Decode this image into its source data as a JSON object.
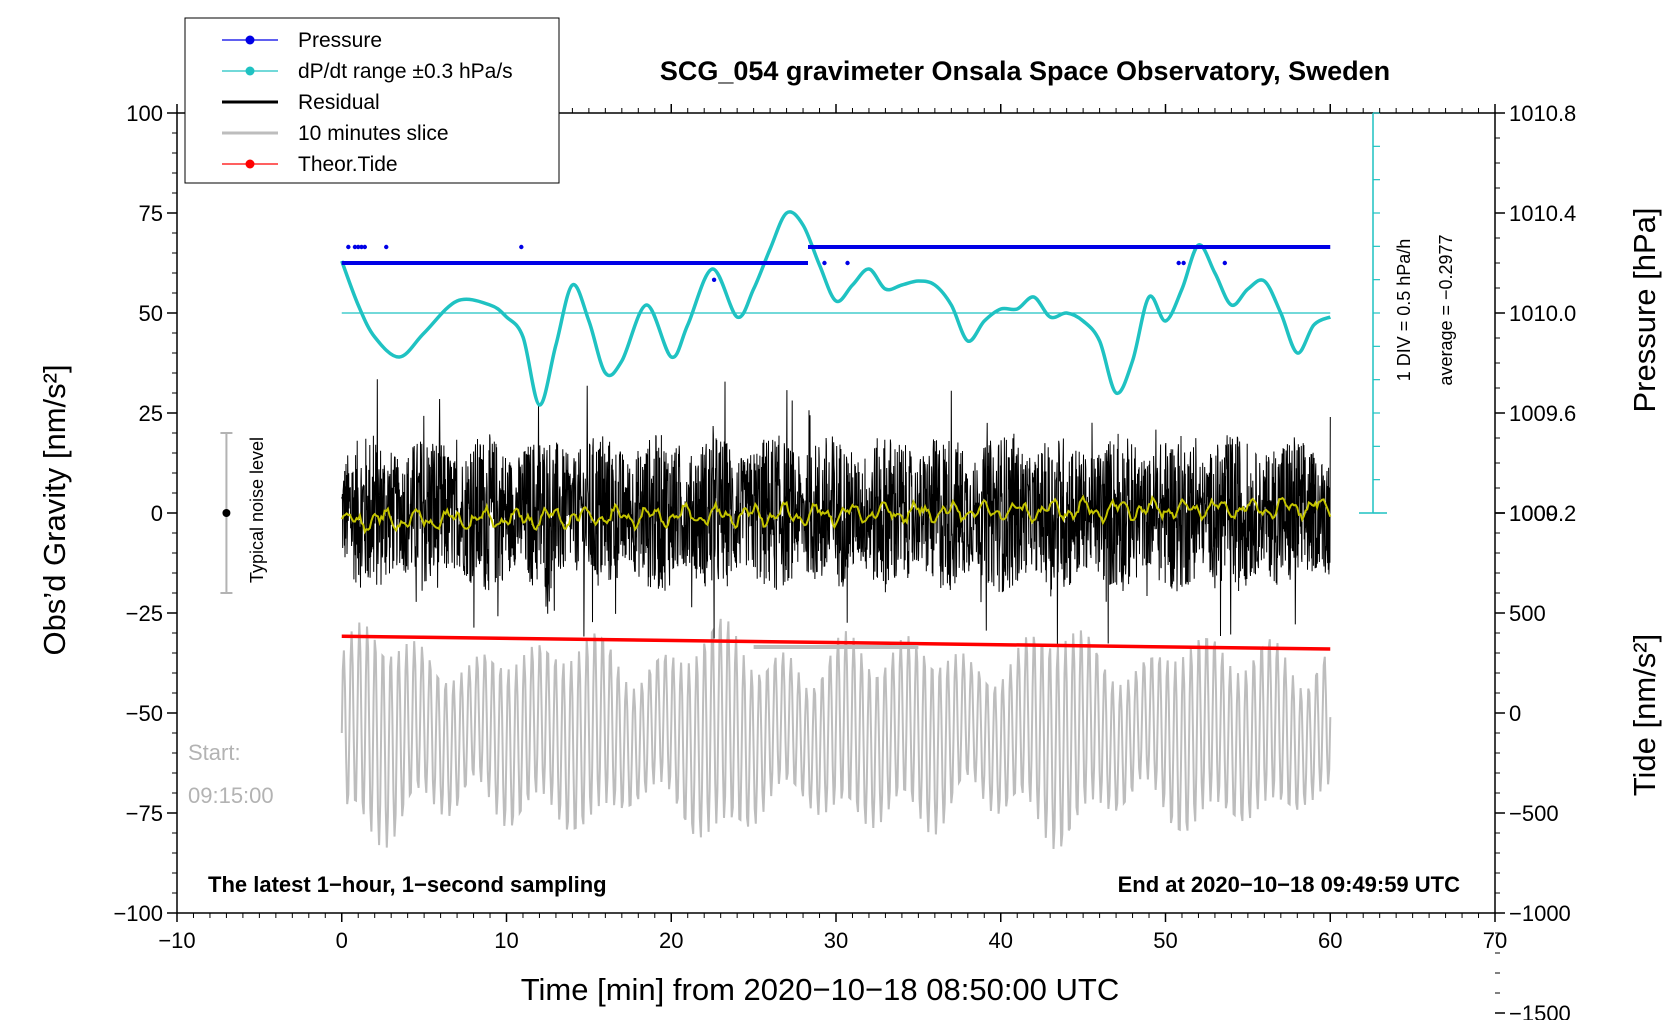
{
  "chart_data": {
    "type": "line",
    "title": "SCG_054 gravimeter Onsala Space Observatory, Sweden",
    "xlabel": "Time [min] from 2020−10−18 08:50:00 UTC",
    "ylabel_left": "Obs’d Gravity [nm/s²]",
    "ylabel_right_pressure": "Pressure [hPa]",
    "ylabel_right_tide": "Tide [nm/s²]",
    "xlim": [
      -10,
      70
    ],
    "ylim": [
      -100,
      100
    ],
    "x_ticks": [
      -10,
      0,
      10,
      20,
      30,
      40,
      50,
      60,
      70
    ],
    "x_tick_labels": [
      "−10",
      "0",
      "10",
      "20",
      "30",
      "40",
      "50",
      "60",
      "70"
    ],
    "y_ticks": [
      100,
      75,
      50,
      25,
      0,
      -25,
      -50,
      -75,
      -100
    ],
    "y_tick_labels": [
      "100",
      "75",
      "50",
      "25",
      "0",
      "−25",
      "−50",
      "−75",
      "−100"
    ],
    "pressure_ticks": [
      1010.8,
      1010.4,
      1010.0,
      1009.6,
      1009.2
    ],
    "pressure_tick_labels": [
      "1010.8",
      "1010.4",
      "1010.0",
      "1009.6",
      "1009.2"
    ],
    "pressure_to_gravity": {
      "p0": 1010.0,
      "g0": 50,
      "nm_per_hpa": 62.5
    },
    "tide_ticks": [
      1000,
      500,
      0,
      -500,
      -1000,
      -1500
    ],
    "tide_tick_labels": [
      "1000",
      "500",
      "0",
      "−500",
      "−1000",
      "−1500"
    ],
    "tide_to_gravity": {
      "t0": 0,
      "g0": -50,
      "nm_per_tide": 0.05
    },
    "legend": [
      {
        "label": "Pressure",
        "color": "#0000e6",
        "marker": "dot"
      },
      {
        "label": "dP/dt range ±0.3 hPa/s",
        "color": "#1fc2c2",
        "marker": "dot"
      },
      {
        "label": "Residual",
        "color": "#000000",
        "marker": "none"
      },
      {
        "label": "10 minutes slice",
        "color": "#bdbdbd",
        "marker": "none"
      },
      {
        "label": "Theor.Tide",
        "color": "#ff0000",
        "marker": "dot"
      }
    ],
    "annotations": {
      "bottom_left": "The latest 1−hour, 1−second sampling",
      "bottom_right": "End at 2020−10−18 09:49:59 UTC",
      "start_label": "Start:",
      "start_time": "09:15:00",
      "noise_label": "Typical noise level",
      "scale_div": "1 DIV = 0.5 hPa/h",
      "scale_avg": "average = −0.2977"
    },
    "pressure_series": {
      "name": "Pressure",
      "color": "#0000e6",
      "segments": [
        {
          "x": [
            0,
            28.3
          ],
          "y": 62.5
        },
        {
          "x": [
            28.3,
            60
          ],
          "y": 66.5
        }
      ],
      "dots_x": [
        0.4,
        0.8,
        1.0,
        1.2,
        1.4,
        2.7,
        10.9,
        22.6,
        29.3,
        30.7,
        50.8,
        51.1,
        53.6
      ],
      "dots_y": [
        66.5,
        66.5,
        66.5,
        66.5,
        66.5,
        66.5,
        66.5,
        58.3,
        62.5,
        62.5,
        62.5,
        62.5,
        62.5
      ]
    },
    "dpdt_series": {
      "name": "dP/dt",
      "color": "#1fc2c2",
      "baseline_y": 50,
      "x": [
        0,
        1,
        2,
        3.5,
        5,
        7,
        9,
        10,
        11,
        12,
        13,
        14,
        15,
        16,
        17,
        18.5,
        20,
        21,
        22.5,
        24,
        25,
        26,
        27,
        28,
        29,
        30,
        31,
        32,
        33,
        34,
        35,
        36,
        37,
        38,
        39,
        40,
        41,
        42,
        43,
        44,
        45,
        46,
        47,
        48,
        49,
        50,
        51,
        52,
        53,
        54,
        55,
        56,
        57,
        58,
        59,
        60
      ],
      "y": [
        63,
        52,
        44,
        39,
        45,
        53,
        52,
        49,
        44,
        27,
        42,
        57,
        48,
        35,
        38,
        52,
        39,
        47,
        61,
        49,
        56,
        66,
        75,
        72,
        62,
        53,
        57,
        61,
        56,
        57,
        58,
        57,
        52,
        43,
        48,
        51,
        51,
        54,
        49,
        50,
        48,
        43,
        30,
        38,
        54,
        48,
        56,
        67,
        60,
        52,
        56,
        58,
        50,
        40,
        47,
        49
      ]
    },
    "residual_series": {
      "name": "Residual",
      "color": "#000000",
      "x_range": [
        0,
        60
      ],
      "amplitude": 20
    },
    "smoothed_series": {
      "name": "Residual (smoothed)",
      "color": "#c4c400",
      "x_range": [
        0,
        60
      ]
    },
    "slice_series": {
      "name": "10 minutes slice",
      "color": "#bdbdbd",
      "x_range": [
        0,
        60
      ],
      "center_y": -55,
      "amplitude": 26
    },
    "tide_series": {
      "name": "Theor.Tide",
      "color": "#ff0000",
      "x": [
        0,
        60
      ],
      "y": [
        -30.8,
        -34
      ]
    },
    "tide_segment": {
      "x": [
        25,
        35
      ],
      "y": -33.5
    },
    "noise_bar": {
      "x": -7,
      "y_low": -20,
      "y_high": 20,
      "center": 0
    }
  }
}
